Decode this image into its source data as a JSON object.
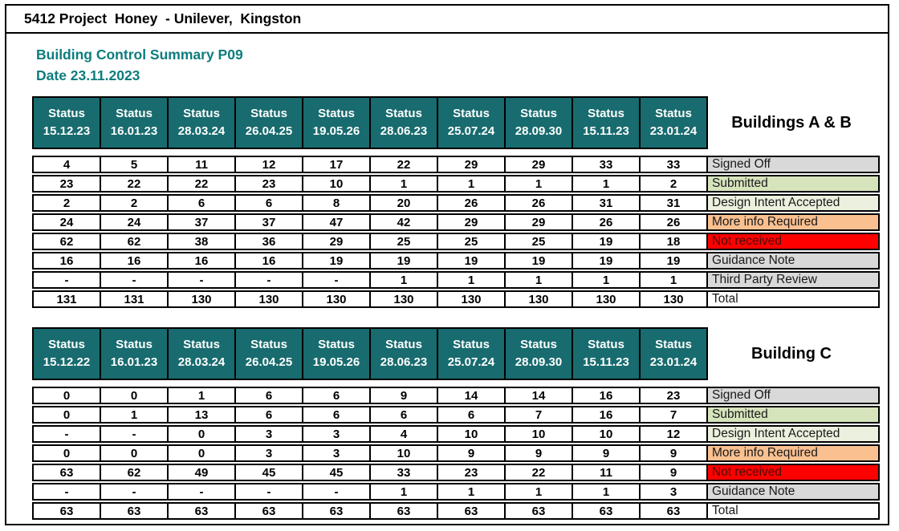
{
  "window": {
    "title": "5412 Project  Honey  - Unilever,  Kingston"
  },
  "report": {
    "title": "Building Control Summary P09",
    "date": "Date 23.11.2023"
  },
  "status_label": "Status",
  "colors": {
    "title_teal": "#0E7C7E",
    "header_teal": "#186B6E",
    "gray": "#D9D9D9",
    "green": "#D6E4BC",
    "pale_green": "#EBF1DE",
    "orange": "#FAC090",
    "red": "#FF0000",
    "white": "#FFFFFF",
    "red_row_text": "#470B06"
  },
  "tables": [
    {
      "name": "Buildings A & B",
      "columns": [
        "15.12.23",
        "16.01.23",
        "28.03.24",
        "26.04.25",
        "19.05.26",
        "28.06.23",
        "25.07.24",
        "28.09.30",
        "15.11.23",
        "23.01.24"
      ],
      "rows": [
        {
          "label": "Signed Off",
          "color": "gray",
          "values": [
            "4",
            "5",
            "11",
            "12",
            "17",
            "22",
            "29",
            "29",
            "33",
            "33"
          ]
        },
        {
          "label": "Submitted",
          "color": "green",
          "values": [
            "23",
            "22",
            "22",
            "23",
            "10",
            "1",
            "1",
            "1",
            "1",
            "2"
          ]
        },
        {
          "label": "Design Intent Accepted",
          "color": "pale_green",
          "values": [
            "2",
            "2",
            "6",
            "6",
            "8",
            "20",
            "26",
            "26",
            "31",
            "31"
          ]
        },
        {
          "label": "More info Required",
          "color": "orange",
          "values": [
            "24",
            "24",
            "37",
            "37",
            "47",
            "42",
            "29",
            "29",
            "26",
            "26"
          ]
        },
        {
          "label": "Not received",
          "color": "red",
          "values": [
            "62",
            "62",
            "38",
            "36",
            "29",
            "25",
            "25",
            "25",
            "19",
            "18"
          ]
        },
        {
          "label": "Guidance Note",
          "color": "gray",
          "values": [
            "16",
            "16",
            "16",
            "16",
            "19",
            "19",
            "19",
            "19",
            "19",
            "19"
          ]
        },
        {
          "label": "Third Party Review",
          "color": "gray",
          "values": [
            "-",
            "-",
            "-",
            "-",
            "-",
            "1",
            "1",
            "1",
            "1",
            "1"
          ]
        },
        {
          "label": "Total",
          "color": "white",
          "values": [
            "131",
            "131",
            "130",
            "130",
            "130",
            "130",
            "130",
            "130",
            "130",
            "130"
          ]
        }
      ]
    },
    {
      "name": "Building C",
      "columns": [
        "15.12.22",
        "16.01.23",
        "28.03.24",
        "26.04.25",
        "19.05.26",
        "28.06.23",
        "25.07.24",
        "28.09.30",
        "15.11.23",
        "23.01.24"
      ],
      "rows": [
        {
          "label": "Signed Off",
          "color": "gray",
          "values": [
            "0",
            "0",
            "1",
            "6",
            "6",
            "9",
            "14",
            "14",
            "16",
            "23"
          ]
        },
        {
          "label": "Submitted",
          "color": "green",
          "values": [
            "0",
            "1",
            "13",
            "6",
            "6",
            "6",
            "6",
            "7",
            "16",
            "7"
          ]
        },
        {
          "label": "Design Intent Accepted",
          "color": "pale_green",
          "values": [
            "-",
            "-",
            "0",
            "3",
            "3",
            "4",
            "10",
            "10",
            "10",
            "12"
          ]
        },
        {
          "label": "More info Required",
          "color": "orange",
          "values": [
            "0",
            "0",
            "0",
            "3",
            "3",
            "10",
            "9",
            "9",
            "9",
            "9"
          ]
        },
        {
          "label": "Not received",
          "color": "red",
          "values": [
            "63",
            "62",
            "49",
            "45",
            "45",
            "33",
            "23",
            "22",
            "11",
            "9"
          ]
        },
        {
          "label": "Guidance Note",
          "color": "gray",
          "values": [
            "-",
            "-",
            "-",
            "-",
            "-",
            "1",
            "1",
            "1",
            "1",
            "3"
          ]
        },
        {
          "label": "Total",
          "color": "white",
          "values": [
            "63",
            "63",
            "63",
            "63",
            "63",
            "63",
            "63",
            "63",
            "63",
            "63"
          ]
        }
      ]
    }
  ]
}
